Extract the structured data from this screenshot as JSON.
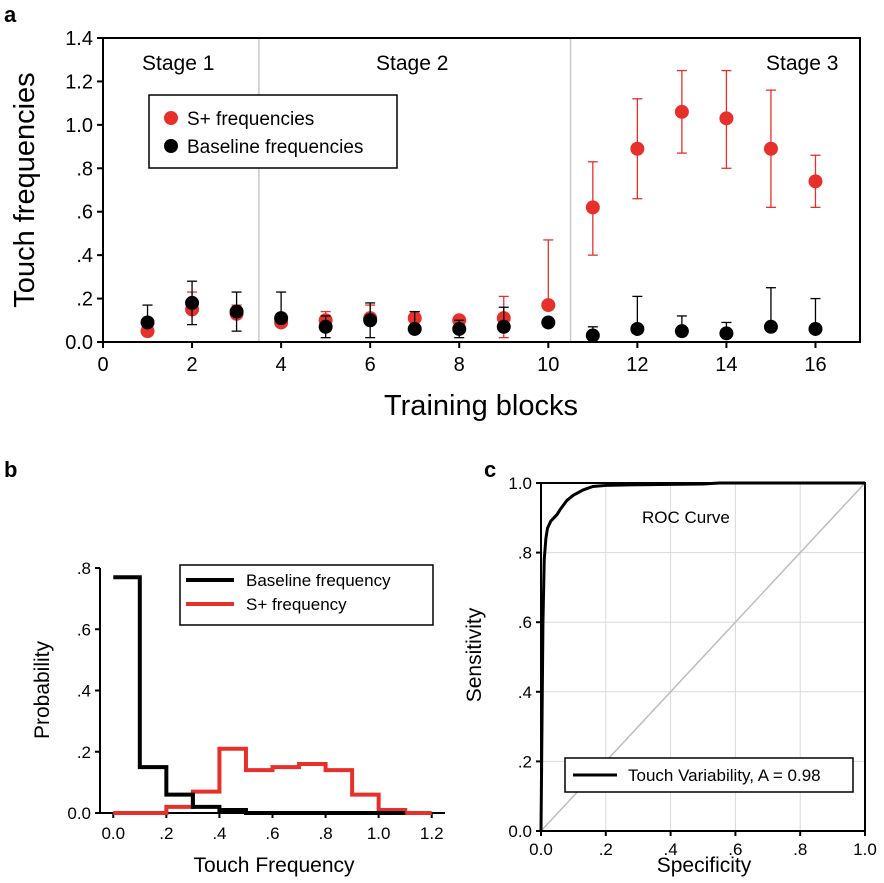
{
  "chart_data": [
    {
      "panel": "a",
      "type": "scatter",
      "xlabel": "Training blocks",
      "ylabel": "Touch frequencies",
      "xlim": [
        0,
        17
      ],
      "ylim": [
        0,
        1.4
      ],
      "xticks": [
        "0",
        "2",
        "4",
        "6",
        "8",
        "10",
        "12",
        "14",
        "16"
      ],
      "yticks": [
        "0.0",
        ".2",
        ".4",
        ".6",
        ".8",
        "1.0",
        "1.2",
        "1.4"
      ],
      "stages": [
        {
          "label": "Stage 1",
          "x_start": 0,
          "x_end": 3.5
        },
        {
          "label": "Stage 2",
          "x_start": 3.5,
          "x_end": 10.5
        },
        {
          "label": "Stage 3",
          "x_start": 10.5,
          "x_end": 17
        }
      ],
      "legend_position": "upper-left",
      "series": [
        {
          "name": "S+ frequencies",
          "color": "#e8302b",
          "x": [
            1,
            2,
            3,
            4,
            5,
            6,
            7,
            8,
            9,
            10,
            11,
            12,
            13,
            14,
            15,
            16
          ],
          "y": [
            0.05,
            0.15,
            0.13,
            0.09,
            0.1,
            0.11,
            0.11,
            0.1,
            0.11,
            0.17,
            0.62,
            0.89,
            1.06,
            1.03,
            0.89,
            0.74
          ],
          "err_upper": [
            0.03,
            0.08,
            0.04,
            0.04,
            0.04,
            0.06,
            0.03,
            0.02,
            0.1,
            0.3,
            0.21,
            0.23,
            0.19,
            0.22,
            0.27,
            0.12
          ],
          "err_lower": [
            0.0,
            0.0,
            0.0,
            0.0,
            0.0,
            0.0,
            0.0,
            0.0,
            0.09,
            0.0,
            0.22,
            0.23,
            0.19,
            0.23,
            0.27,
            0.12
          ]
        },
        {
          "name": "Baseline frequencies",
          "color": "#000000",
          "x": [
            1,
            2,
            3,
            4,
            5,
            6,
            7,
            8,
            9,
            10,
            11,
            12,
            13,
            14,
            15,
            16
          ],
          "y": [
            0.09,
            0.18,
            0.14,
            0.11,
            0.07,
            0.1,
            0.06,
            0.06,
            0.07,
            0.09,
            0.03,
            0.06,
            0.05,
            0.04,
            0.07,
            0.06
          ],
          "err_upper": [
            0.08,
            0.1,
            0.09,
            0.12,
            0.05,
            0.08,
            0.08,
            0.04,
            0.09,
            0.0,
            0.04,
            0.15,
            0.07,
            0.05,
            0.18,
            0.14
          ],
          "err_lower": [
            0.0,
            0.1,
            0.09,
            0.0,
            0.05,
            0.08,
            0.0,
            0.04,
            0.0,
            0.0,
            0.0,
            0.0,
            0.0,
            0.0,
            0.0,
            0.0
          ]
        }
      ]
    },
    {
      "panel": "b",
      "type": "line",
      "subtype": "step-histogram",
      "xlabel": "Touch Frequency",
      "ylabel": "Probability",
      "xlim": [
        -0.05,
        1.25
      ],
      "ylim": [
        0,
        0.8
      ],
      "xticks": [
        "0.0",
        ".2",
        ".4",
        ".6",
        ".8",
        "1.0",
        "1.2"
      ],
      "yticks": [
        "0.0",
        ".2",
        ".4",
        ".6",
        ".8"
      ],
      "legend_position": "upper-right",
      "series": [
        {
          "name": "Baseline frequency",
          "color": "#000000",
          "bin_edges": [
            0.0,
            0.1,
            0.2,
            0.3,
            0.4,
            0.5,
            0.6,
            0.7,
            0.8,
            0.9,
            1.0,
            1.1
          ],
          "values": [
            0.77,
            0.15,
            0.06,
            0.02,
            0.01,
            0.0,
            0.0,
            0.0,
            0.0,
            0.0,
            0.0
          ]
        },
        {
          "name": "S+ frequency",
          "color": "#e8302b",
          "bin_edges": [
            0.0,
            0.1,
            0.2,
            0.3,
            0.4,
            0.5,
            0.6,
            0.7,
            0.8,
            0.9,
            1.0,
            1.1,
            1.2
          ],
          "values": [
            0.0,
            0.0,
            0.02,
            0.07,
            0.21,
            0.14,
            0.15,
            0.16,
            0.14,
            0.06,
            0.01,
            0.0
          ]
        }
      ]
    },
    {
      "panel": "c",
      "type": "line",
      "title": "ROC Curve",
      "xlabel": "Specificity",
      "ylabel": "Sensitivity",
      "xlim": [
        0,
        1
      ],
      "ylim": [
        0,
        1
      ],
      "xticks": [
        "0.0",
        ".2",
        ".4",
        ".6",
        ".8",
        "1.0"
      ],
      "yticks": [
        "0.0",
        ".2",
        ".4",
        ".6",
        ".8",
        "1.0"
      ],
      "grid": true,
      "legend_position": "lower-right",
      "series": [
        {
          "name": "Touch Variability, A = 0.98",
          "color": "#000000",
          "x": [
            0.0,
            0.003,
            0.006,
            0.01,
            0.015,
            0.02,
            0.03,
            0.04,
            0.05,
            0.06,
            0.08,
            0.1,
            0.13,
            0.16,
            0.2,
            0.3,
            0.5,
            0.55,
            0.7,
            1.0
          ],
          "y": [
            0.0,
            0.3,
            0.6,
            0.78,
            0.84,
            0.87,
            0.89,
            0.9,
            0.91,
            0.925,
            0.95,
            0.965,
            0.98,
            0.99,
            0.993,
            0.995,
            0.997,
            1.0,
            1.0,
            1.0
          ]
        },
        {
          "name": "",
          "color": "#bdbdbd",
          "x": [
            0,
            1
          ],
          "y": [
            0,
            1
          ]
        }
      ]
    }
  ],
  "labels": {
    "panel_a": "a",
    "panel_b": "b",
    "panel_c": "c",
    "stage1": "Stage 1",
    "stage2": "Stage 2",
    "stage3": "Stage 3",
    "a_legend_1": "S+ frequencies",
    "a_legend_2": "Baseline frequencies",
    "b_legend_1": "Baseline frequency",
    "b_legend_2": "S+ frequency",
    "c_title": "ROC Curve",
    "c_legend": "Touch Variability, A = 0.98",
    "a_xlabel": "Training blocks",
    "a_ylabel": "Touch frequencies",
    "b_xlabel": "Touch Frequency",
    "b_ylabel": "Probability",
    "c_xlabel": "Specificity",
    "c_ylabel": "Sensitivity"
  },
  "colors": {
    "splus": "#e8302b",
    "baseline": "#000000",
    "diagonal": "#bdbdbd"
  }
}
